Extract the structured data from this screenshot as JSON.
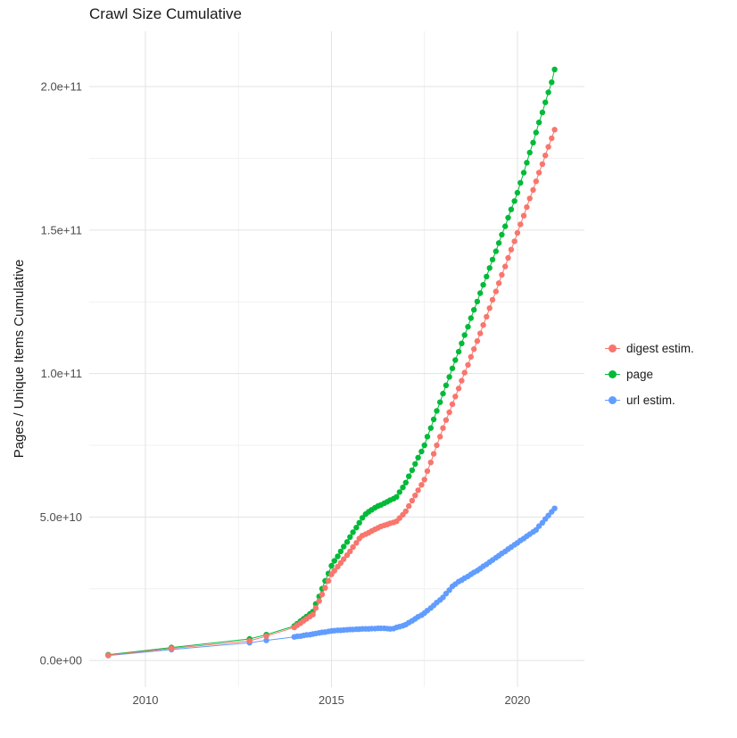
{
  "chart_data": {
    "type": "scatter",
    "title": "Crawl Size Cumulative",
    "xlabel": "",
    "ylabel": "Pages / Unique Items Cumulative",
    "legend_position": "right",
    "grid": "on",
    "background": "#ffffff",
    "grid_major_color": "#e3e3e3",
    "grid_minor_color": "#f1f1f1",
    "y_values_unit": "1e9",
    "xlim": [
      2008.49,
      2021.8
    ],
    "ylim": [
      -9.3,
      219.3
    ],
    "x_ticks": [
      2010,
      2015,
      2020
    ],
    "x_tick_labels": [
      "2010",
      "2015",
      "2020"
    ],
    "x_minor_ticks": [
      2012.5,
      2017.5
    ],
    "y_ticks": [
      0,
      50,
      100,
      150,
      200
    ],
    "y_tick_labels": [
      "0.0e+00",
      "5.0e+10",
      "1.0e+11",
      "1.5e+11",
      "2.0e+11"
    ],
    "y_minor_ticks": [
      25,
      75,
      125,
      175
    ],
    "x": [
      2009,
      2010.7,
      2012.8,
      2013.25,
      2014,
      2014.08,
      2014.17,
      2014.25,
      2014.33,
      2014.42,
      2014.5,
      2014.58,
      2014.67,
      2014.75,
      2014.83,
      2014.92,
      2015,
      2015.08,
      2015.17,
      2015.25,
      2015.33,
      2015.42,
      2015.5,
      2015.58,
      2015.67,
      2015.75,
      2015.83,
      2015.92,
      2016,
      2016.08,
      2016.17,
      2016.25,
      2016.33,
      2016.42,
      2016.5,
      2016.58,
      2016.67,
      2016.75,
      2016.83,
      2016.92,
      2017,
      2017.08,
      2017.17,
      2017.25,
      2017.33,
      2017.42,
      2017.5,
      2017.58,
      2017.67,
      2017.75,
      2017.83,
      2017.92,
      2018,
      2018.08,
      2018.17,
      2018.25,
      2018.33,
      2018.42,
      2018.5,
      2018.58,
      2018.67,
      2018.75,
      2018.83,
      2018.92,
      2019,
      2019.08,
      2019.17,
      2019.25,
      2019.33,
      2019.42,
      2019.5,
      2019.58,
      2019.67,
      2019.75,
      2019.83,
      2019.92,
      2020,
      2020.08,
      2020.17,
      2020.25,
      2020.33,
      2020.42,
      2020.5,
      2020.58,
      2020.67,
      2020.75,
      2020.83,
      2020.92,
      2021
    ],
    "series": [
      {
        "name": "digest estim.",
        "color": "#F8766D",
        "values": [
          1.8,
          4.2,
          6.8,
          8.5,
          11.5,
          12.3,
          13,
          13.8,
          14.5,
          15.3,
          16,
          18.3,
          20.7,
          23,
          25.3,
          27.7,
          30,
          31.3,
          32.7,
          34,
          35.3,
          36.7,
          38,
          39.5,
          41,
          42.5,
          43.5,
          44,
          44.5,
          45.1,
          45.7,
          46.2,
          46.7,
          47.1,
          47.4,
          47.8,
          48.1,
          48.5,
          49.6,
          50.8,
          52,
          53.8,
          55.7,
          57.5,
          59.3,
          61.2,
          63,
          66,
          69,
          72,
          75,
          78,
          81,
          83.8,
          86.5,
          89.3,
          92,
          94.8,
          97.5,
          100.3,
          103,
          105.8,
          108.5,
          111.3,
          114,
          116.9,
          119.8,
          122.8,
          125.7,
          128.6,
          131.5,
          134.4,
          137.3,
          140.3,
          143.2,
          146.1,
          149,
          152,
          155,
          158,
          161,
          164,
          167,
          170,
          173,
          176,
          179,
          182,
          185
        ]
      },
      {
        "name": "page",
        "color": "#00BA38",
        "values": [
          2,
          4.5,
          7.5,
          9,
          12,
          12.8,
          13.7,
          14.5,
          15.3,
          16.2,
          17,
          19.7,
          22.3,
          25,
          27.7,
          30.3,
          33,
          34.7,
          36.3,
          38,
          39.7,
          41.3,
          43,
          44.7,
          46.3,
          48,
          49.7,
          51,
          51.8,
          52.5,
          53.2,
          53.8,
          54.2,
          54.8,
          55.3,
          55.9,
          56.4,
          57,
          58.7,
          60.3,
          62,
          64.2,
          66.3,
          68.5,
          70.7,
          72.8,
          75,
          78,
          81,
          84,
          87,
          90,
          93,
          95.9,
          98.8,
          101.8,
          104.7,
          107.6,
          110.5,
          113.4,
          116.3,
          119.3,
          122.2,
          125.1,
          128,
          130.9,
          133.8,
          136.8,
          139.7,
          142.6,
          145.5,
          148.4,
          151.3,
          154.3,
          157.2,
          160.1,
          163,
          166.5,
          170,
          173.5,
          177,
          180.5,
          184,
          187.5,
          191,
          194.5,
          198,
          201.5,
          206
        ]
      },
      {
        "name": "url estim.",
        "color": "#619CFF",
        "values": [
          1.7,
          3.8,
          6.2,
          7,
          8.2,
          8.4,
          8.5,
          8.7,
          8.9,
          9,
          9.2,
          9.4,
          9.6,
          9.8,
          9.9,
          10.1,
          10.3,
          10.4,
          10.5,
          10.5,
          10.6,
          10.7,
          10.8,
          10.8,
          10.9,
          10.9,
          11,
          11,
          11,
          11.1,
          11.1,
          11.2,
          11.2,
          11.2,
          11.1,
          11,
          11.1,
          11.5,
          11.8,
          12.1,
          12.5,
          13.2,
          13.8,
          14.5,
          15.2,
          15.8,
          16.5,
          17.4,
          18.3,
          19.2,
          20.2,
          21.1,
          22,
          23.3,
          24.5,
          25.8,
          26.6,
          27.5,
          28,
          28.7,
          29.3,
          30,
          30.7,
          31.3,
          32,
          32.8,
          33.5,
          34.3,
          35,
          35.8,
          36.5,
          37.3,
          38,
          38.8,
          39.5,
          40.3,
          41,
          41.8,
          42.5,
          43.3,
          44,
          44.8,
          45.5,
          46.8,
          48,
          49.3,
          50.5,
          51.8,
          53
        ]
      }
    ]
  }
}
